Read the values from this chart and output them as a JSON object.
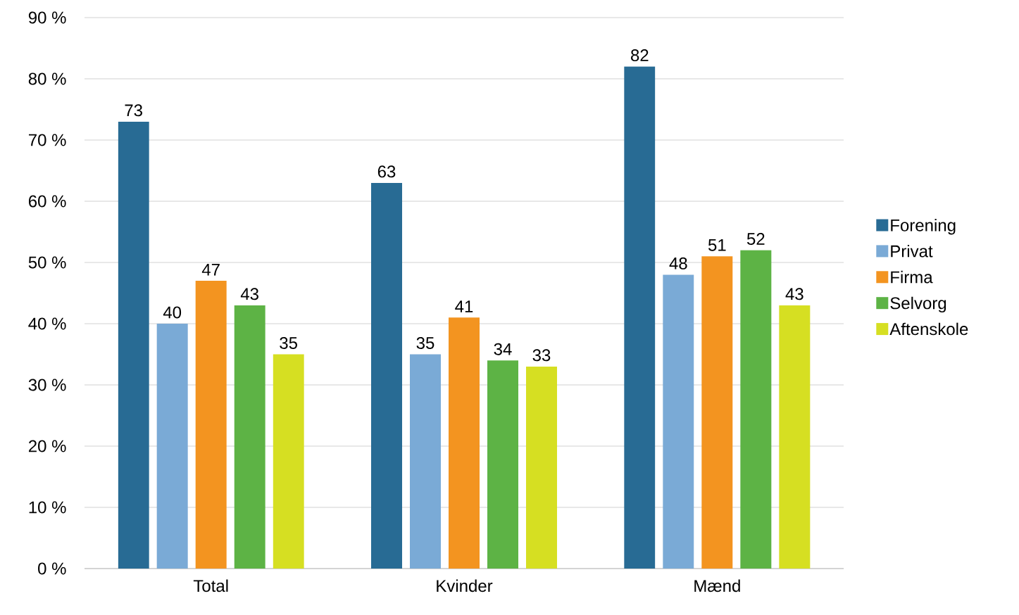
{
  "chart_data": {
    "type": "bar",
    "categories": [
      "Total",
      "Kvinder",
      "Mænd"
    ],
    "series": [
      {
        "name": "Forening",
        "color": "#286b94",
        "values": [
          73,
          63,
          82
        ]
      },
      {
        "name": "Privat",
        "color": "#7aaad6",
        "values": [
          40,
          35,
          48
        ]
      },
      {
        "name": "Firma",
        "color": "#f39420",
        "values": [
          47,
          41,
          51
        ]
      },
      {
        "name": "Selvorg",
        "color": "#5db345",
        "values": [
          43,
          34,
          52
        ]
      },
      {
        "name": "Aftenskole",
        "color": "#d6df22",
        "values": [
          35,
          33,
          43
        ]
      }
    ],
    "ylim": [
      0,
      90
    ],
    "yticks": [
      {
        "value": 0,
        "label": "0 %"
      },
      {
        "value": 10,
        "label": "10 %"
      },
      {
        "value": 20,
        "label": "20 %"
      },
      {
        "value": 30,
        "label": "30 %"
      },
      {
        "value": 40,
        "label": "40 %"
      },
      {
        "value": 50,
        "label": "50 %"
      },
      {
        "value": 60,
        "label": "60 %"
      },
      {
        "value": 70,
        "label": "70 %"
      },
      {
        "value": 80,
        "label": "80 %"
      },
      {
        "value": 90,
        "label": "90 %"
      }
    ],
    "grid": "y",
    "legend": "right",
    "data_labels": true
  }
}
